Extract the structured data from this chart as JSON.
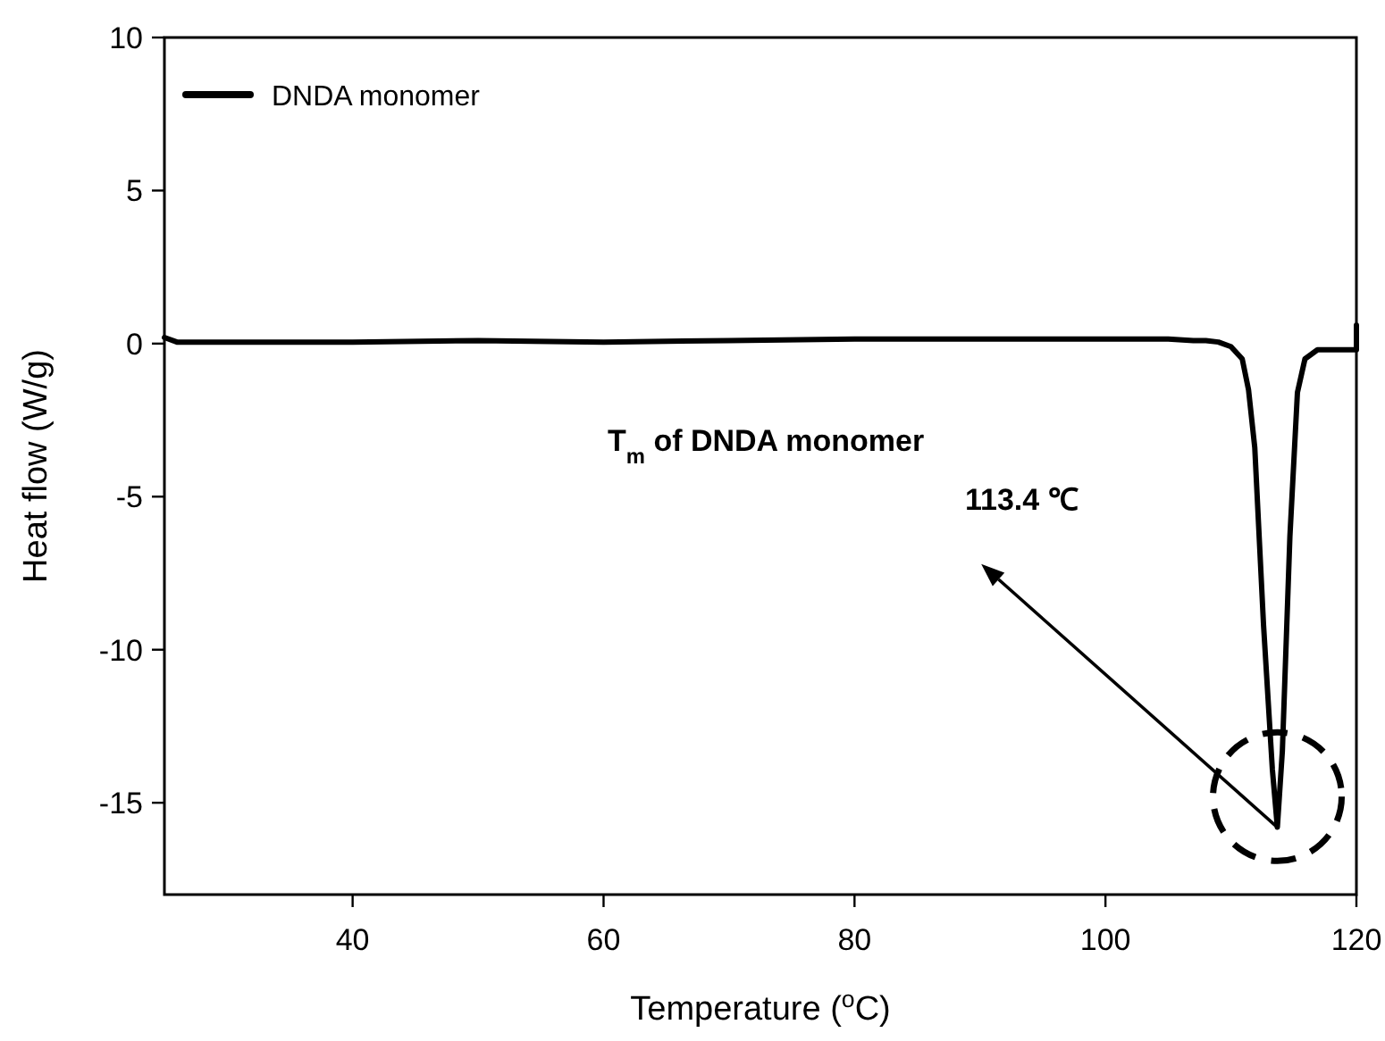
{
  "chart_data": {
    "type": "line",
    "xlabel": "Temperature ($^{o}$C)",
    "ylabel": "Heat flow (W/g)",
    "xlim": [
      25,
      120
    ],
    "ylim": [
      -18,
      10
    ],
    "xticks": [
      40,
      60,
      80,
      100,
      120
    ],
    "yticks": [
      -15,
      -10,
      -5,
      0,
      5,
      10
    ],
    "grid": false,
    "legend": "top left",
    "marker": "none",
    "line_style": "solid",
    "annotations": [
      "T$_{m}$ of DNDA monomer",
      "113.4 ℃"
    ],
    "series": [
      {
        "name": "DNDA monomer",
        "color": "#000000",
        "x": [
          25,
          26,
          30,
          40,
          50,
          60,
          70,
          80,
          90,
          100,
          105,
          107,
          108,
          109,
          110,
          110.9,
          111.4,
          111.9,
          112.6,
          113.3,
          113.7,
          114.1,
          114.7,
          115.3,
          115.9,
          116.9,
          118,
          119.8,
          120,
          120
        ],
        "values": [
          0.2,
          0.05,
          0.05,
          0.05,
          0.1,
          0.05,
          0.1,
          0.15,
          0.15,
          0.15,
          0.15,
          0.1,
          0.1,
          0.05,
          -0.1,
          -0.5,
          -1.5,
          -3.4,
          -9.2,
          -13.9,
          -15.8,
          -13.3,
          -6.3,
          -1.6,
          -0.5,
          -0.2,
          -0.2,
          -0.2,
          -0.2,
          0.6
        ]
      }
    ]
  }
}
